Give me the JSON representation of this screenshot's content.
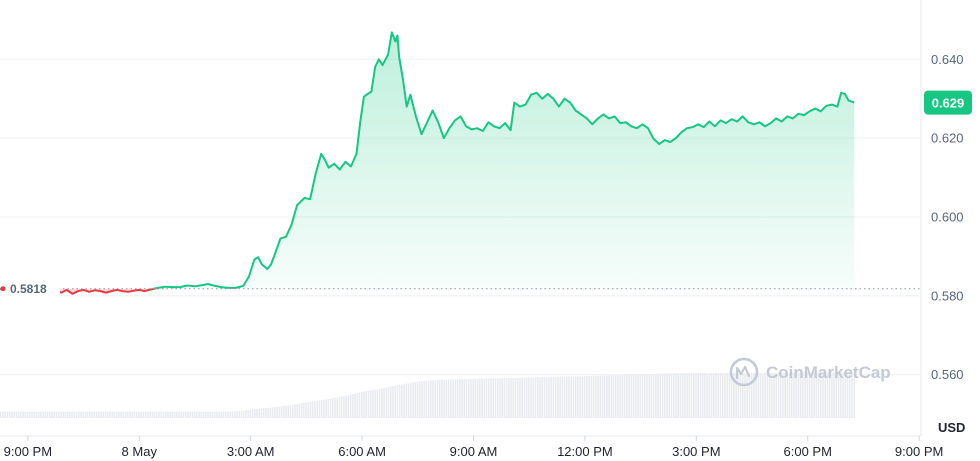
{
  "chart_data": {
    "type": "area",
    "unit_label": "USD",
    "reference_value": 0.5818,
    "reference_label": "0.5818",
    "current_value": 0.629,
    "current_label": "0.629",
    "ylim": [
      0.549,
      0.653
    ],
    "y_ticks": [
      "0.640",
      "0.620",
      "0.600",
      "0.580",
      "0.560"
    ],
    "y_tick_values": [
      0.64,
      0.62,
      0.6,
      0.58,
      0.56
    ],
    "x_ticks": [
      "9:00 PM",
      "8 May",
      "3:00 AM",
      "6:00 AM",
      "9:00 AM",
      "12:00 PM",
      "3:00 PM",
      "6:00 PM",
      "9:00 PM"
    ],
    "x_tick_hours": [
      0,
      3,
      6,
      9,
      12,
      15,
      18,
      21,
      24
    ],
    "xlim_hours": [
      -0.75,
      24.05
    ],
    "grid": true,
    "colors": {
      "up": "#16c784",
      "down": "#ea3943",
      "badge": "#16c784"
    },
    "watermark": "CoinMarketCap",
    "series": [
      {
        "points": [
          [
            -0.75,
            0.5818
          ],
          [
            -0.6,
            0.5815
          ],
          [
            -0.45,
            0.5812
          ],
          [
            -0.3,
            0.5808
          ],
          [
            -0.15,
            0.5812
          ],
          [
            0.0,
            0.5805
          ],
          [
            0.15,
            0.5812
          ],
          [
            0.3,
            0.5808
          ],
          [
            0.45,
            0.5815
          ],
          [
            0.6,
            0.5805
          ],
          [
            0.75,
            0.5812
          ],
          [
            0.9,
            0.5808
          ],
          [
            1.05,
            0.5815
          ],
          [
            1.2,
            0.5805
          ],
          [
            1.35,
            0.5812
          ],
          [
            1.5,
            0.5815
          ],
          [
            1.65,
            0.581
          ],
          [
            1.8,
            0.5814
          ],
          [
            1.95,
            0.5812
          ],
          [
            2.1,
            0.5808
          ],
          [
            2.25,
            0.5812
          ],
          [
            2.4,
            0.5815
          ],
          [
            2.55,
            0.5812
          ],
          [
            2.7,
            0.581
          ],
          [
            2.85,
            0.5813
          ],
          [
            3.0,
            0.5815
          ],
          [
            3.15,
            0.5812
          ],
          [
            3.3,
            0.5816
          ],
          [
            3.5,
            0.582
          ],
          [
            3.7,
            0.5823
          ],
          [
            3.9,
            0.5822
          ],
          [
            4.1,
            0.5822
          ],
          [
            4.3,
            0.5826
          ],
          [
            4.5,
            0.5824
          ],
          [
            4.7,
            0.5827
          ],
          [
            4.85,
            0.583
          ],
          [
            5.0,
            0.5826
          ],
          [
            5.2,
            0.5822
          ],
          [
            5.4,
            0.582
          ],
          [
            5.6,
            0.582
          ],
          [
            5.8,
            0.5825
          ],
          [
            5.95,
            0.5848
          ],
          [
            6.1,
            0.5892
          ],
          [
            6.2,
            0.5898
          ],
          [
            6.3,
            0.588
          ],
          [
            6.45,
            0.5868
          ],
          [
            6.55,
            0.588
          ],
          [
            6.65,
            0.5905
          ],
          [
            6.8,
            0.5945
          ],
          [
            6.95,
            0.595
          ],
          [
            7.1,
            0.598
          ],
          [
            7.25,
            0.603
          ],
          [
            7.45,
            0.6048
          ],
          [
            7.6,
            0.6045
          ],
          [
            7.75,
            0.611
          ],
          [
            7.9,
            0.616
          ],
          [
            8.0,
            0.6145
          ],
          [
            8.1,
            0.6125
          ],
          [
            8.25,
            0.6135
          ],
          [
            8.4,
            0.612
          ],
          [
            8.55,
            0.614
          ],
          [
            8.7,
            0.6128
          ],
          [
            8.85,
            0.616
          ],
          [
            8.95,
            0.624
          ],
          [
            9.05,
            0.6305
          ],
          [
            9.15,
            0.6312
          ],
          [
            9.25,
            0.6318
          ],
          [
            9.35,
            0.638
          ],
          [
            9.45,
            0.64
          ],
          [
            9.55,
            0.6385
          ],
          [
            9.7,
            0.6412
          ],
          [
            9.8,
            0.6468
          ],
          [
            9.9,
            0.6445
          ],
          [
            9.95,
            0.646
          ],
          [
            10.0,
            0.6405
          ],
          [
            10.1,
            0.635
          ],
          [
            10.2,
            0.628
          ],
          [
            10.3,
            0.631
          ],
          [
            10.45,
            0.6255
          ],
          [
            10.6,
            0.621
          ],
          [
            10.75,
            0.624
          ],
          [
            10.9,
            0.627
          ],
          [
            11.05,
            0.624
          ],
          [
            11.2,
            0.62
          ],
          [
            11.35,
            0.6225
          ],
          [
            11.5,
            0.6245
          ],
          [
            11.65,
            0.6255
          ],
          [
            11.8,
            0.623
          ],
          [
            11.95,
            0.6222
          ],
          [
            12.1,
            0.6225
          ],
          [
            12.25,
            0.6218
          ],
          [
            12.4,
            0.624
          ],
          [
            12.55,
            0.623
          ],
          [
            12.7,
            0.6225
          ],
          [
            12.85,
            0.6238
          ],
          [
            13.0,
            0.622
          ],
          [
            13.1,
            0.629
          ],
          [
            13.25,
            0.628
          ],
          [
            13.4,
            0.6285
          ],
          [
            13.55,
            0.631
          ],
          [
            13.7,
            0.6315
          ],
          [
            13.85,
            0.63
          ],
          [
            14.0,
            0.6312
          ],
          [
            14.15,
            0.63
          ],
          [
            14.3,
            0.628
          ],
          [
            14.45,
            0.63
          ],
          [
            14.6,
            0.629
          ],
          [
            14.75,
            0.627
          ],
          [
            14.9,
            0.626
          ],
          [
            15.05,
            0.625
          ],
          [
            15.2,
            0.6235
          ],
          [
            15.35,
            0.625
          ],
          [
            15.5,
            0.626
          ],
          [
            15.65,
            0.625
          ],
          [
            15.8,
            0.6255
          ],
          [
            15.95,
            0.6238
          ],
          [
            16.1,
            0.624
          ],
          [
            16.25,
            0.623
          ],
          [
            16.4,
            0.6225
          ],
          [
            16.55,
            0.6235
          ],
          [
            16.7,
            0.6225
          ],
          [
            16.85,
            0.6198
          ],
          [
            17.0,
            0.6185
          ],
          [
            17.15,
            0.6195
          ],
          [
            17.3,
            0.619
          ],
          [
            17.45,
            0.62
          ],
          [
            17.6,
            0.6215
          ],
          [
            17.75,
            0.6225
          ],
          [
            17.9,
            0.6228
          ],
          [
            18.05,
            0.6235
          ],
          [
            18.2,
            0.6228
          ],
          [
            18.35,
            0.6242
          ],
          [
            18.5,
            0.623
          ],
          [
            18.65,
            0.6245
          ],
          [
            18.8,
            0.6238
          ],
          [
            18.95,
            0.6248
          ],
          [
            19.1,
            0.6242
          ],
          [
            19.25,
            0.6255
          ],
          [
            19.4,
            0.624
          ],
          [
            19.55,
            0.6235
          ],
          [
            19.7,
            0.624
          ],
          [
            19.85,
            0.623
          ],
          [
            20.0,
            0.6238
          ],
          [
            20.15,
            0.625
          ],
          [
            20.3,
            0.6242
          ],
          [
            20.45,
            0.6255
          ],
          [
            20.6,
            0.625
          ],
          [
            20.75,
            0.6262
          ],
          [
            20.9,
            0.6258
          ],
          [
            21.05,
            0.6268
          ],
          [
            21.2,
            0.6275
          ],
          [
            21.35,
            0.6268
          ],
          [
            21.5,
            0.6282
          ],
          [
            21.65,
            0.6285
          ],
          [
            21.8,
            0.628
          ],
          [
            21.9,
            0.6315
          ],
          [
            22.0,
            0.6312
          ],
          [
            22.1,
            0.6295
          ],
          [
            22.2,
            0.6292
          ],
          [
            22.25,
            0.629
          ]
        ]
      }
    ],
    "volume": {
      "values": [
        [
          -0.75,
          1
        ],
        [
          5.5,
          1
        ],
        [
          5.75,
          1.1
        ],
        [
          6.0,
          1.35
        ],
        [
          6.5,
          1.6
        ],
        [
          7.0,
          2.0
        ],
        [
          7.5,
          2.45
        ],
        [
          8.0,
          2.9
        ],
        [
          8.5,
          3.45
        ],
        [
          9.0,
          4.1
        ],
        [
          9.5,
          4.6
        ],
        [
          9.8,
          5.0
        ],
        [
          10.5,
          5.7
        ],
        [
          11.0,
          5.95
        ],
        [
          11.5,
          6.05
        ],
        [
          12.0,
          6.1
        ],
        [
          13.0,
          6.25
        ],
        [
          14.0,
          6.4
        ],
        [
          15.0,
          6.55
        ],
        [
          16.0,
          6.75
        ],
        [
          17.0,
          6.95
        ],
        [
          18.0,
          7.05
        ],
        [
          19.0,
          7.05
        ],
        [
          20.0,
          7.05
        ],
        [
          21.0,
          7.1
        ],
        [
          22.25,
          7.1
        ]
      ],
      "max": 7.5
    }
  }
}
